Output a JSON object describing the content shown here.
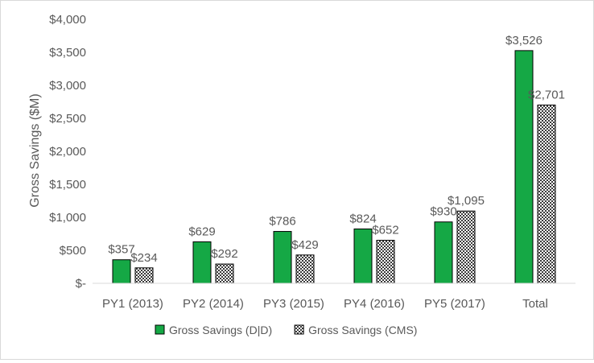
{
  "chart_data": {
    "type": "bar",
    "title": "",
    "xlabel": "",
    "ylabel": "Gross Savings ($M)",
    "ylim": [
      0,
      4000
    ],
    "yticks": [
      0,
      500,
      1000,
      1500,
      2000,
      2500,
      3000,
      3500,
      4000
    ],
    "ytick_labels": [
      "$-",
      "$500",
      "$1,000",
      "$1,500",
      "$2,000",
      "$2,500",
      "$3,000",
      "$3,500",
      "$4,000"
    ],
    "categories": [
      "PY1 (2013)",
      "PY2 (2014)",
      "PY3 (2015)",
      "PY4 (2016)",
      "PY5 (2017)",
      "Total"
    ],
    "series": [
      {
        "name": "Gross Savings (D|D)",
        "color": "#15a845",
        "pattern": "solid",
        "values": [
          357,
          629,
          786,
          824,
          930,
          3526
        ],
        "labels": [
          "$357",
          "$629",
          "$786",
          "$824",
          "$930",
          "$3,526"
        ]
      },
      {
        "name": "Gross Savings (CMS)",
        "color": "#333333",
        "pattern": "checkered",
        "values": [
          234,
          292,
          429,
          652,
          1095,
          2701
        ],
        "labels": [
          "$234",
          "$292",
          "$429",
          "$652",
          "$1,095",
          "$2,701"
        ]
      }
    ],
    "grid": false,
    "legend_position": "bottom"
  }
}
